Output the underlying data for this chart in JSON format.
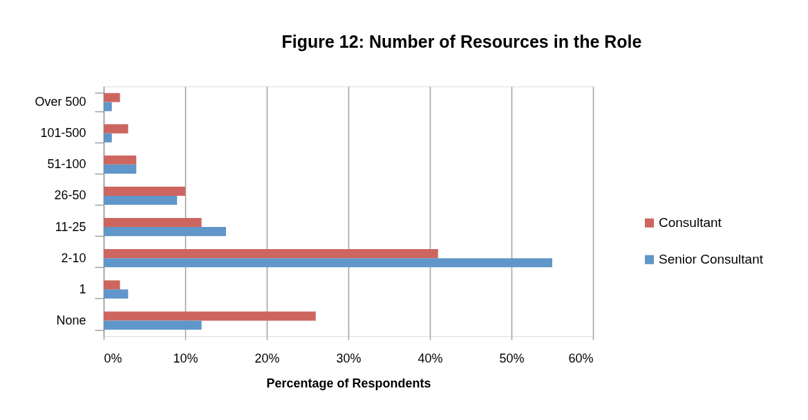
{
  "chart_data": {
    "type": "bar",
    "orientation": "horizontal",
    "title": "Figure 12:  Number of Resources in the Role",
    "xlabel": "Percentage of Respondents",
    "categories": [
      "Over 500",
      "101-500",
      "51-100",
      "26-50",
      "11-25",
      "2-10",
      "1",
      "None"
    ],
    "series": [
      {
        "name": "Consultant",
        "color": "#cd6660",
        "values": [
          2,
          3,
          4,
          10,
          12,
          41,
          2,
          26
        ]
      },
      {
        "name": "Senior Consultant",
        "color": "#6096c9",
        "values": [
          1,
          1,
          4,
          9,
          15,
          55,
          3,
          12
        ]
      }
    ],
    "xlim": [
      0,
      60
    ],
    "xticks": [
      {
        "value": 0,
        "label": "0%"
      },
      {
        "value": 10,
        "label": "10%"
      },
      {
        "value": 20,
        "label": "20%"
      },
      {
        "value": 30,
        "label": "30%"
      },
      {
        "value": 40,
        "label": "40%"
      },
      {
        "value": 50,
        "label": "50%"
      },
      {
        "value": 60,
        "label": "60%"
      }
    ],
    "grid": "x",
    "legend": "right"
  }
}
